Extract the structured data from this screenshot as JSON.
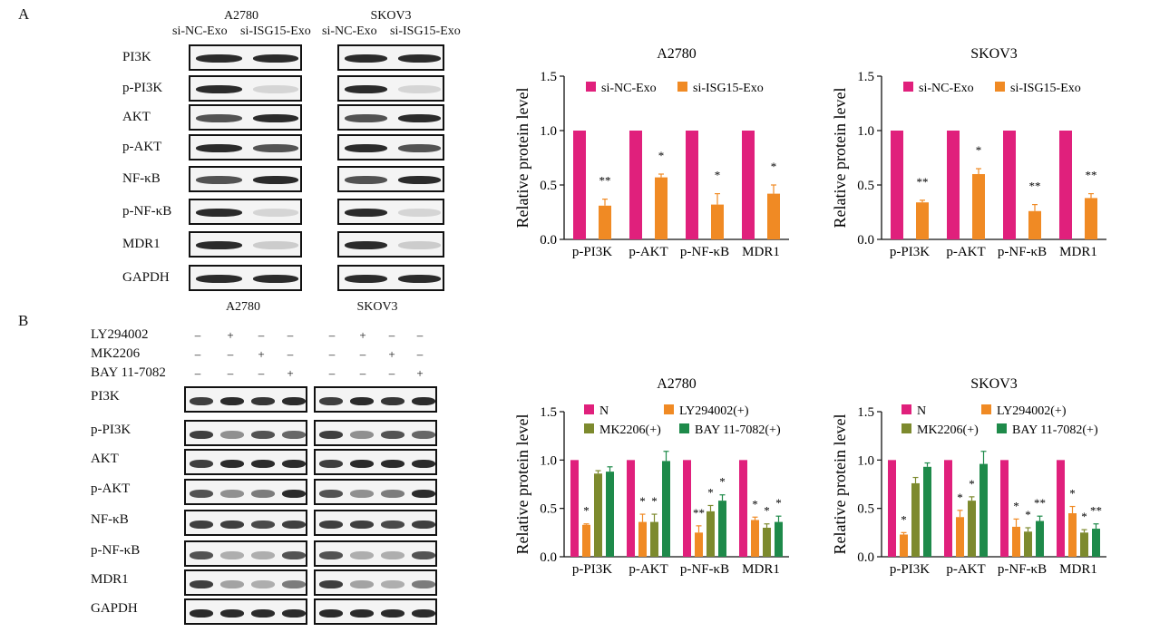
{
  "panelA": {
    "letter": "A",
    "cell_lines": [
      "A2780",
      "SKOV3"
    ],
    "lanes": [
      "si-NC-Exo",
      "si-ISG15-Exo"
    ],
    "proteins": [
      "PI3K",
      "p-PI3K",
      "AKT",
      "p-AKT",
      "NF-κB",
      "p-NF-κB",
      "MDR1",
      "GAPDH"
    ]
  },
  "panelB": {
    "letter": "B",
    "cell_lines": [
      "A2780",
      "SKOV3"
    ],
    "treatments": [
      "LY294002",
      "MK2206",
      "BAY 11-7082"
    ],
    "signs": [
      [
        "–",
        "+",
        "–",
        "–"
      ],
      [
        "–",
        "–",
        "+",
        "–"
      ],
      [
        "–",
        "–",
        "–",
        "+"
      ]
    ],
    "proteins": [
      "PI3K",
      "p-PI3K",
      "AKT",
      "p-AKT",
      "NF-κB",
      "p-NF-κB",
      "MDR1",
      "GAPDH"
    ]
  },
  "colors": {
    "magenta": "#e0207c",
    "orange": "#f08a24",
    "olive": "#7d8a2e",
    "green": "#1e8a4a"
  },
  "chart_data": [
    {
      "type": "bar",
      "title": "A2780",
      "ylabel": "Relative protein level",
      "ylim": [
        0,
        1.5
      ],
      "yticks": [
        "0.0",
        "0.5",
        "1.0",
        "1.5"
      ],
      "categories": [
        "p-PI3K",
        "p-AKT",
        "p-NF-κB",
        "MDR1"
      ],
      "legend": "top",
      "series": [
        {
          "name": "si-NC-Exo",
          "color": "#e0207c",
          "values": [
            1.0,
            1.0,
            1.0,
            1.0
          ],
          "errors": [
            0,
            0,
            0,
            0
          ]
        },
        {
          "name": "si-ISG15-Exo",
          "color": "#f08a24",
          "values": [
            0.31,
            0.57,
            0.32,
            0.42
          ],
          "errors": [
            0.06,
            0.03,
            0.1,
            0.08
          ]
        }
      ],
      "annotations": [
        "**",
        "*",
        "*",
        "*"
      ]
    },
    {
      "type": "bar",
      "title": "SKOV3",
      "ylabel": "Relative protein level",
      "ylim": [
        0,
        1.5
      ],
      "yticks": [
        "0.0",
        "0.5",
        "1.0",
        "1.5"
      ],
      "categories": [
        "p-PI3K",
        "p-AKT",
        "p-NF-κB",
        "MDR1"
      ],
      "legend": "top",
      "series": [
        {
          "name": "si-NC-Exo",
          "color": "#e0207c",
          "values": [
            1.0,
            1.0,
            1.0,
            1.0
          ],
          "errors": [
            0,
            0,
            0,
            0
          ]
        },
        {
          "name": "si-ISG15-Exo",
          "color": "#f08a24",
          "values": [
            0.34,
            0.6,
            0.26,
            0.38
          ],
          "errors": [
            0.02,
            0.05,
            0.06,
            0.04
          ]
        }
      ],
      "annotations": [
        "**",
        "*",
        "**",
        "**"
      ]
    },
    {
      "type": "bar",
      "title": "A2780",
      "ylabel": "Relative protein level",
      "ylim": [
        0,
        1.5
      ],
      "yticks": [
        "0.0",
        "0.5",
        "1.0",
        "1.5"
      ],
      "categories": [
        "p-PI3K",
        "p-AKT",
        "p-NF-κB",
        "MDR1"
      ],
      "legend": "top",
      "series": [
        {
          "name": "N",
          "color": "#e0207c",
          "values": [
            1.0,
            1.0,
            1.0,
            1.0
          ],
          "errors": [
            0,
            0,
            0,
            0
          ]
        },
        {
          "name": "LY294002(+)",
          "color": "#f08a24",
          "values": [
            0.33,
            0.36,
            0.25,
            0.38
          ],
          "errors": [
            0.01,
            0.08,
            0.07,
            0.03
          ]
        },
        {
          "name": "MK2206(+)",
          "color": "#7d8a2e",
          "values": [
            0.86,
            0.36,
            0.47,
            0.3
          ],
          "errors": [
            0.03,
            0.08,
            0.06,
            0.04
          ]
        },
        {
          "name": "BAY 11-7082(+)",
          "color": "#1e8a4a",
          "values": [
            0.88,
            0.99,
            0.58,
            0.36
          ],
          "errors": [
            0.05,
            0.1,
            0.06,
            0.06
          ]
        }
      ],
      "annotations": [
        [
          "*",
          "",
          ""
        ],
        [
          "*",
          "*",
          ""
        ],
        [
          "**",
          "*",
          "*"
        ],
        [
          "*",
          "*",
          "*"
        ]
      ]
    },
    {
      "type": "bar",
      "title": "SKOV3",
      "ylabel": "Relative protein level",
      "ylim": [
        0,
        1.5
      ],
      "yticks": [
        "0.0",
        "0.5",
        "1.0",
        "1.5"
      ],
      "categories": [
        "p-PI3K",
        "p-AKT",
        "p-NF-κB",
        "MDR1"
      ],
      "legend": "top",
      "series": [
        {
          "name": "N",
          "color": "#e0207c",
          "values": [
            1.0,
            1.0,
            1.0,
            1.0
          ],
          "errors": [
            0,
            0,
            0,
            0
          ]
        },
        {
          "name": "LY294002(+)",
          "color": "#f08a24",
          "values": [
            0.23,
            0.41,
            0.31,
            0.45
          ],
          "errors": [
            0.02,
            0.07,
            0.08,
            0.07
          ]
        },
        {
          "name": "MK2206(+)",
          "color": "#7d8a2e",
          "values": [
            0.76,
            0.58,
            0.26,
            0.25
          ],
          "errors": [
            0.06,
            0.04,
            0.04,
            0.03
          ]
        },
        {
          "name": "BAY 11-7082(+)",
          "color": "#1e8a4a",
          "values": [
            0.93,
            0.96,
            0.37,
            0.29
          ],
          "errors": [
            0.04,
            0.13,
            0.05,
            0.05
          ]
        }
      ],
      "annotations": [
        [
          "*",
          "",
          ""
        ],
        [
          "*",
          "*",
          ""
        ],
        [
          "*",
          "*",
          "**"
        ],
        [
          "*",
          "*",
          "**"
        ]
      ]
    }
  ]
}
